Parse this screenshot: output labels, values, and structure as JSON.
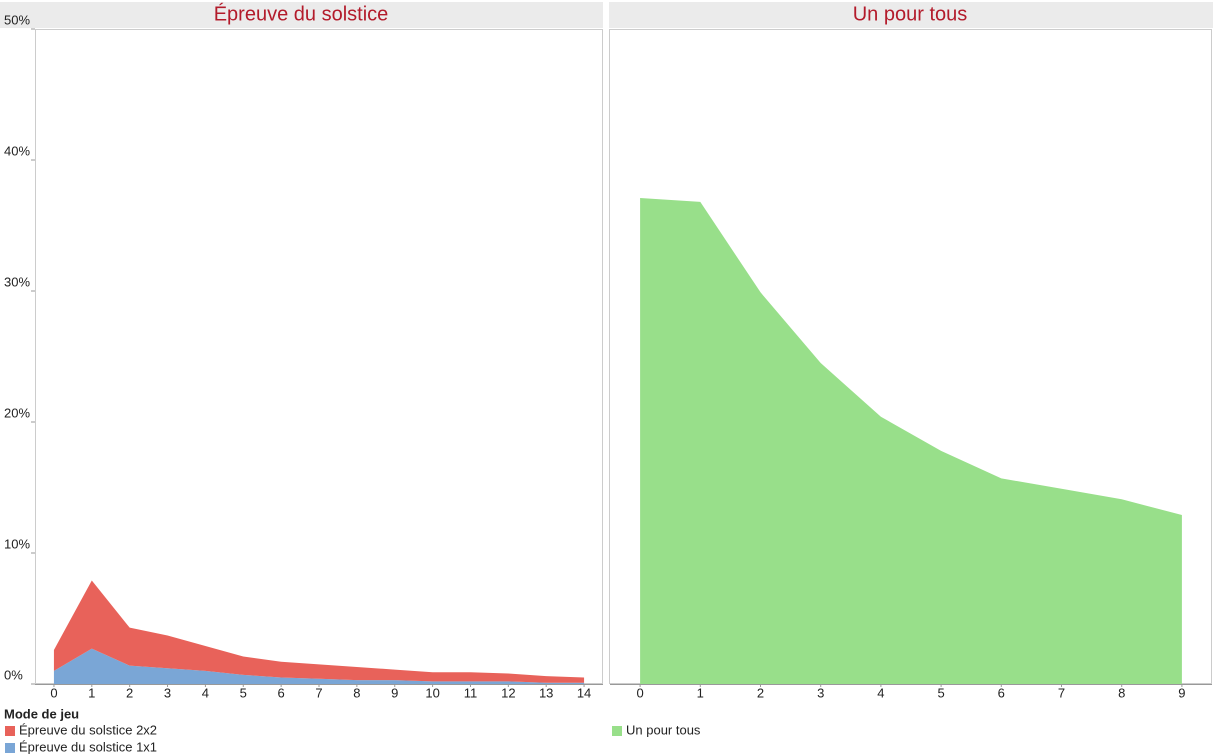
{
  "chart_data": [
    {
      "type": "area",
      "title": "Épreuve du solstice",
      "stacked": true,
      "x": [
        0,
        1,
        2,
        3,
        4,
        5,
        6,
        7,
        8,
        9,
        10,
        11,
        12,
        13,
        14
      ],
      "series": [
        {
          "name": "Épreuve du solstice 2x2",
          "color": "#e8625a",
          "values": [
            1.6,
            5.2,
            2.9,
            2.5,
            1.9,
            1.4,
            1.2,
            1.1,
            1.0,
            0.8,
            0.7,
            0.7,
            0.6,
            0.5,
            0.4
          ]
        },
        {
          "name": "Épreuve du solstice 1x1",
          "color": "#7aa6d6",
          "values": [
            1.0,
            2.7,
            1.4,
            1.2,
            1.0,
            0.7,
            0.5,
            0.4,
            0.3,
            0.3,
            0.2,
            0.2,
            0.2,
            0.1,
            0.1
          ]
        }
      ],
      "legend_title": "Mode de jeu",
      "ylim": [
        0,
        50
      ],
      "yticks": [
        {
          "value": 0,
          "label": "0%"
        },
        {
          "value": 10,
          "label": "10%"
        },
        {
          "value": 20,
          "label": "20%"
        },
        {
          "value": 30,
          "label": "30%"
        },
        {
          "value": 40,
          "label": "40%"
        },
        {
          "value": 50,
          "label": "50%"
        }
      ]
    },
    {
      "type": "area",
      "title": "Un pour tous",
      "x": [
        0,
        1,
        2,
        3,
        4,
        5,
        6,
        7,
        8,
        9
      ],
      "series": [
        {
          "name": "Un pour tous",
          "color": "#98df8a",
          "values": [
            37.1,
            36.8,
            29.9,
            24.5,
            20.4,
            17.8,
            15.7,
            14.9,
            14.1,
            12.9
          ]
        }
      ],
      "ylim": [
        0,
        50
      ]
    }
  ]
}
